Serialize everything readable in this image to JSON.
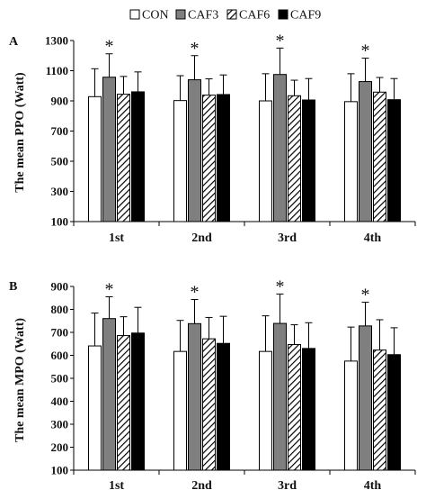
{
  "legend": {
    "items": [
      {
        "label": "CON",
        "fill": "white"
      },
      {
        "label": "CAF3",
        "fill": "gray"
      },
      {
        "label": "CAF6",
        "fill": "hatch"
      },
      {
        "label": "CAF9",
        "fill": "black"
      }
    ]
  },
  "colors": {
    "CON": "#ffffff",
    "CAF3": "#7f7f7f",
    "CAF6": "hatch",
    "CAF9": "#000000",
    "outline": "#000000"
  },
  "chart_data": [
    {
      "type": "bar",
      "panel_label": "A",
      "ylabel": "The mean PPO (Watt)",
      "categories": [
        "1st",
        "2nd",
        "3rd",
        "4th"
      ],
      "ylim": [
        100,
        1300
      ],
      "yticks": [
        100,
        300,
        500,
        700,
        900,
        1100,
        1300
      ],
      "series": [
        {
          "name": "CON",
          "values": [
            928,
            902,
            900,
            895
          ],
          "errors": [
            185,
            165,
            180,
            185
          ]
        },
        {
          "name": "CAF3",
          "values": [
            1057,
            1040,
            1075,
            1028
          ],
          "errors": [
            155,
            160,
            175,
            155
          ]
        },
        {
          "name": "CAF6",
          "values": [
            944,
            938,
            934,
            958
          ],
          "errors": [
            118,
            108,
            103,
            97
          ]
        },
        {
          "name": "CAF9",
          "values": [
            960,
            942,
            906,
            908
          ],
          "errors": [
            132,
            130,
            142,
            140
          ]
        }
      ],
      "annotations": [
        {
          "category": "1st",
          "series": "CAF3",
          "text": "*"
        },
        {
          "category": "2nd",
          "series": "CAF3",
          "text": "*"
        },
        {
          "category": "3rd",
          "series": "CAF3",
          "text": "*"
        },
        {
          "category": "4th",
          "series": "CAF3",
          "text": "*"
        }
      ]
    },
    {
      "type": "bar",
      "panel_label": "B",
      "ylabel": "The mean MPO (Watt)",
      "categories": [
        "1st",
        "2nd",
        "3rd",
        "4th"
      ],
      "ylim": [
        100,
        900
      ],
      "yticks": [
        100,
        200,
        300,
        400,
        500,
        600,
        700,
        800,
        900
      ],
      "series": [
        {
          "name": "CON",
          "values": [
            641,
            617,
            617,
            575
          ],
          "errors": [
            143,
            135,
            155,
            148
          ]
        },
        {
          "name": "CAF3",
          "values": [
            760,
            738,
            739,
            728
          ],
          "errors": [
            95,
            105,
            128,
            103
          ]
        },
        {
          "name": "CAF6",
          "values": [
            686,
            672,
            647,
            623
          ],
          "errors": [
            82,
            93,
            86,
            132
          ]
        },
        {
          "name": "CAF9",
          "values": [
            697,
            652,
            630,
            603
          ],
          "errors": [
            112,
            118,
            112,
            117
          ]
        }
      ],
      "annotations": [
        {
          "category": "1st",
          "series": "CAF3",
          "text": "*"
        },
        {
          "category": "2nd",
          "series": "CAF3",
          "text": "*"
        },
        {
          "category": "3rd",
          "series": "CAF3",
          "text": "*"
        },
        {
          "category": "4th",
          "series": "CAF3",
          "text": "*"
        }
      ]
    }
  ]
}
